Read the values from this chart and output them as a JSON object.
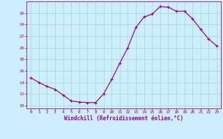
{
  "hours": [
    0,
    1,
    2,
    3,
    4,
    5,
    6,
    7,
    8,
    9,
    10,
    11,
    12,
    13,
    14,
    15,
    16,
    17,
    18,
    19,
    20,
    21,
    22,
    23
  ],
  "values": [
    14.8,
    14.0,
    13.3,
    12.8,
    11.8,
    10.8,
    10.6,
    10.5,
    10.5,
    12.0,
    14.5,
    17.3,
    20.0,
    23.5,
    25.3,
    25.8,
    27.1,
    27.0,
    26.3,
    26.3,
    25.0,
    23.2,
    21.5,
    20.3
  ],
  "line_color": "#990099",
  "marker": "+",
  "bg_color": "#cceeff",
  "grid_color": "#aaddcc",
  "axis_color": "#990099",
  "xlabel": "Windchill (Refroidissement éolien,°C)",
  "ylim": [
    9.5,
    28
  ],
  "xlim": [
    -0.5,
    23.5
  ],
  "yticks": [
    10,
    12,
    14,
    16,
    18,
    20,
    22,
    24,
    26
  ],
  "xticks": [
    0,
    1,
    2,
    3,
    4,
    5,
    6,
    7,
    8,
    9,
    10,
    11,
    12,
    13,
    14,
    15,
    16,
    17,
    18,
    19,
    20,
    21,
    22,
    23
  ],
  "figsize": [
    3.2,
    2.0
  ],
  "dpi": 100
}
